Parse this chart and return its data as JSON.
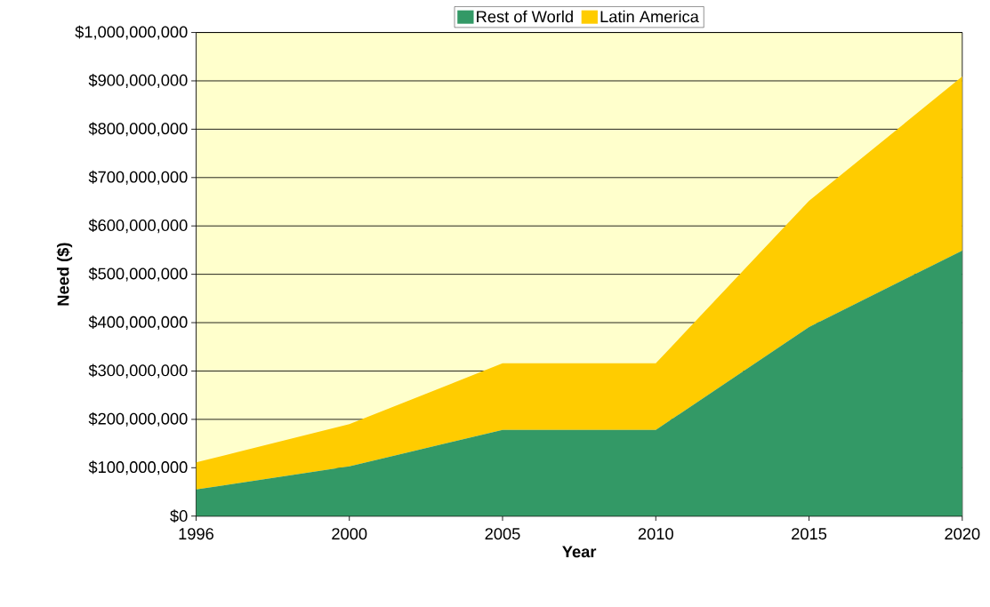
{
  "chart_data": {
    "type": "area",
    "stacked": true,
    "xlabel": "Year",
    "ylabel": "Need ($)",
    "categories": [
      "1996",
      "2000",
      "2005",
      "2010",
      "2015",
      "2020"
    ],
    "series": [
      {
        "name": "Rest of World",
        "color": "#339966",
        "values": [
          55000000,
          103000000,
          178000000,
          178000000,
          391000000,
          549000000
        ]
      },
      {
        "name": "Latin America",
        "color": "#ffcc00",
        "values": [
          56000000,
          87000000,
          138000000,
          138000000,
          261000000,
          360000000
        ]
      }
    ],
    "ylim": [
      0,
      1000000000
    ],
    "yticks": [
      {
        "value": 0,
        "label": "$0"
      },
      {
        "value": 100000000,
        "label": "$100,000,000"
      },
      {
        "value": 200000000,
        "label": "$200,000,000"
      },
      {
        "value": 300000000,
        "label": "$300,000,000"
      },
      {
        "value": 400000000,
        "label": "$400,000,000"
      },
      {
        "value": 500000000,
        "label": "$500,000,000"
      },
      {
        "value": 600000000,
        "label": "$600,000,000"
      },
      {
        "value": 700000000,
        "label": "$700,000,000"
      },
      {
        "value": 800000000,
        "label": "$800,000,000"
      },
      {
        "value": 900000000,
        "label": "$900,000,000"
      },
      {
        "value": 1000000000,
        "label": "$1,000,000,000"
      }
    ],
    "grid": "y",
    "legend": "top"
  }
}
